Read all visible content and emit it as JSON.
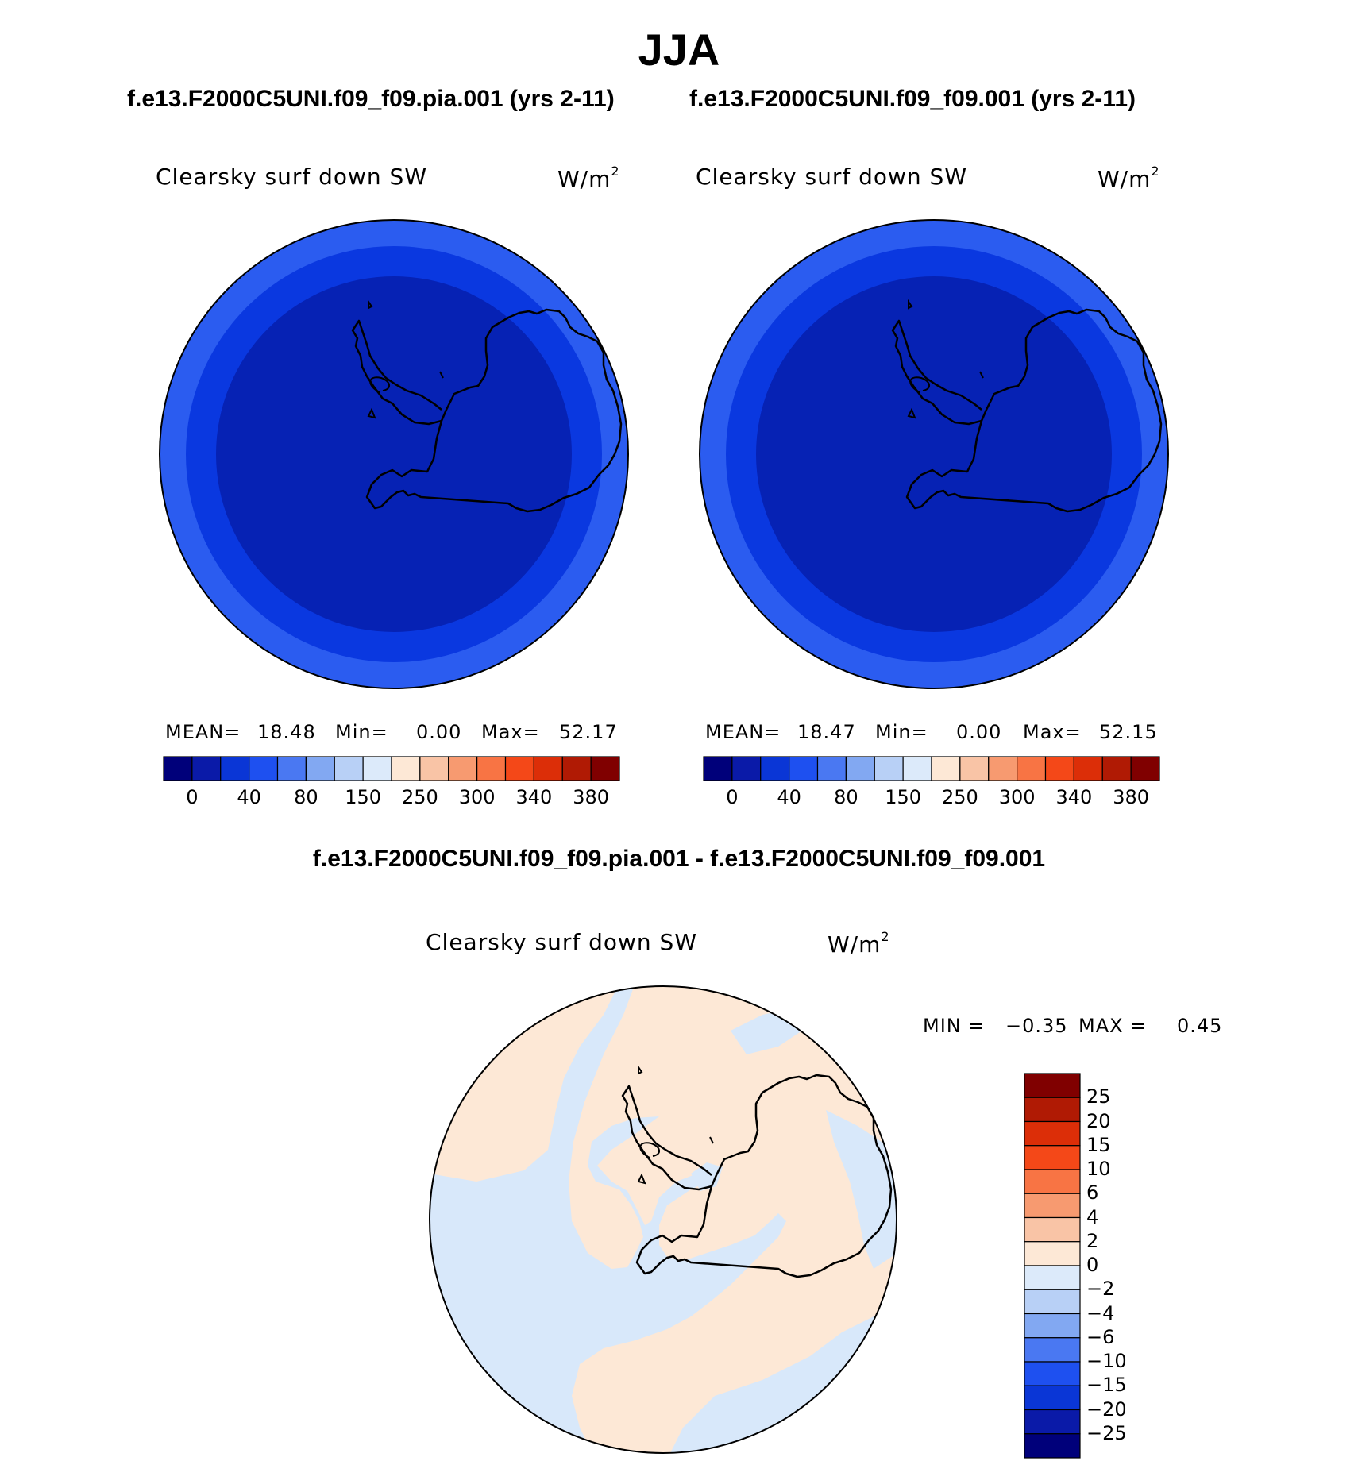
{
  "page_title": "JJA",
  "panels": [
    {
      "case_title": "f.e13.F2000C5UNI.f09_f09.pia.001 (yrs 2-11)",
      "variable": "Clearsky surf down SW",
      "units_base": "W/m",
      "units_exp": "2",
      "mean_label": "MEAN=",
      "mean_value": "18.48",
      "min_label": "Min=",
      "min_value": "0.00",
      "max_label": "Max=",
      "max_value": "52.17",
      "zones": {
        "outer": "#2b5cf0",
        "middle": "#0a38e0",
        "inner": "#0622b4"
      }
    },
    {
      "case_title": "f.e13.F2000C5UNI.f09_f09.001 (yrs 2-11)",
      "variable": "Clearsky surf down SW",
      "units_base": "W/m",
      "units_exp": "2",
      "mean_label": "MEAN=",
      "mean_value": "18.47",
      "min_label": "Min=",
      "min_value": "0.00",
      "max_label": "Max=",
      "max_value": "52.15",
      "zones": {
        "outer": "#2b5cf0",
        "middle": "#0a38e0",
        "inner": "#0622b4"
      }
    }
  ],
  "colorbar": {
    "colors": [
      "#00007a",
      "#0a1aa8",
      "#0a36d6",
      "#1e50f0",
      "#4a78f2",
      "#82a8f2",
      "#b8d0f6",
      "#dceafa",
      "#fde8d6",
      "#f9c4a6",
      "#f79a70",
      "#f87444",
      "#f44818",
      "#dc2e08",
      "#b01a04",
      "#800000"
    ],
    "ticks": [
      "0",
      "40",
      "80",
      "150",
      "250",
      "300",
      "340",
      "380"
    ]
  },
  "diff": {
    "title": "f.e13.F2000C5UNI.f09_f09.pia.001 - f.e13.F2000C5UNI.f09_f09.001",
    "variable": "Clearsky surf down SW",
    "units_base": "W/m",
    "units_exp": "2",
    "min_label": "MIN =",
    "min_value": "−0.35",
    "max_label": "MAX =",
    "max_value": "0.45",
    "colors": {
      "positive": "#fde8d6",
      "negative": "#d8e8fa"
    }
  },
  "diff_colorbar": {
    "colors": [
      "#800000",
      "#b01a04",
      "#dc2e08",
      "#f44818",
      "#f87444",
      "#f79a70",
      "#f9c4a6",
      "#fde8d6",
      "#dceafa",
      "#b8d0f6",
      "#82a8f2",
      "#4a78f2",
      "#1e50f0",
      "#0a36d6",
      "#0a1aa8",
      "#00007a"
    ],
    "ticks": [
      "25",
      "20",
      "15",
      "10",
      "6",
      "4",
      "2",
      "0",
      "−2",
      "−4",
      "−6",
      "−10",
      "−15",
      "−20",
      "−25"
    ]
  }
}
